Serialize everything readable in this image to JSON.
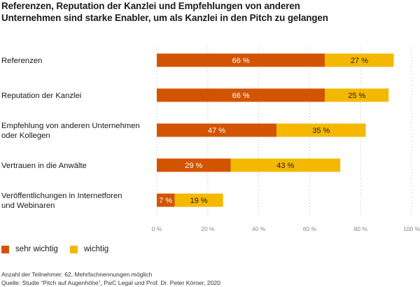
{
  "chart_data": {
    "type": "bar",
    "orientation": "horizontal",
    "stacked": true,
    "title_lines": [
      "Referenzen, Reputation der Kanzlei und Empfehlungen von anderen",
      "Unternehmen sind starke Enabler, um als Kanzlei in den Pitch zu gelangen"
    ],
    "categories": [
      [
        "Referenzen"
      ],
      [
        "Reputation der Kanzlei"
      ],
      [
        "Empfehlung von anderen Unternehmen",
        "oder Kollegen"
      ],
      [
        "Vertrauen in die Anwälte"
      ],
      [
        "Veröffentlichungen in Internetforen",
        "und Webinaren"
      ]
    ],
    "series": [
      {
        "name": "sehr wichtig",
        "color": "#d35400",
        "values": [
          66,
          66,
          47,
          29,
          7
        ],
        "labels": [
          "66 %",
          "66 %",
          "47 %",
          "29 %",
          "7 %"
        ]
      },
      {
        "name": "wichtig",
        "color": "#f5b800",
        "values": [
          27,
          25,
          35,
          43,
          19
        ],
        "labels": [
          "27 %",
          "25 %",
          "35 %",
          "43 %",
          "19 %"
        ]
      }
    ],
    "xlim": [
      0,
      100
    ],
    "xticks": [
      0,
      20,
      40,
      60,
      80,
      100
    ],
    "xtick_labels": [
      "0 %",
      "20 %",
      "40 %",
      "60 %",
      "80 %",
      "100 %"
    ],
    "grid": "vertical dotted",
    "legend_position": "bottom-left"
  },
  "notes": {
    "participants": "Anzahl der Teilnehmer: 62, Mehrfachnennungen möglich",
    "source": "Quelle: Studie “Pitch auf Augenhöhe”, PwC Legal und Prof. Dr. Peter Körner, 2020"
  }
}
